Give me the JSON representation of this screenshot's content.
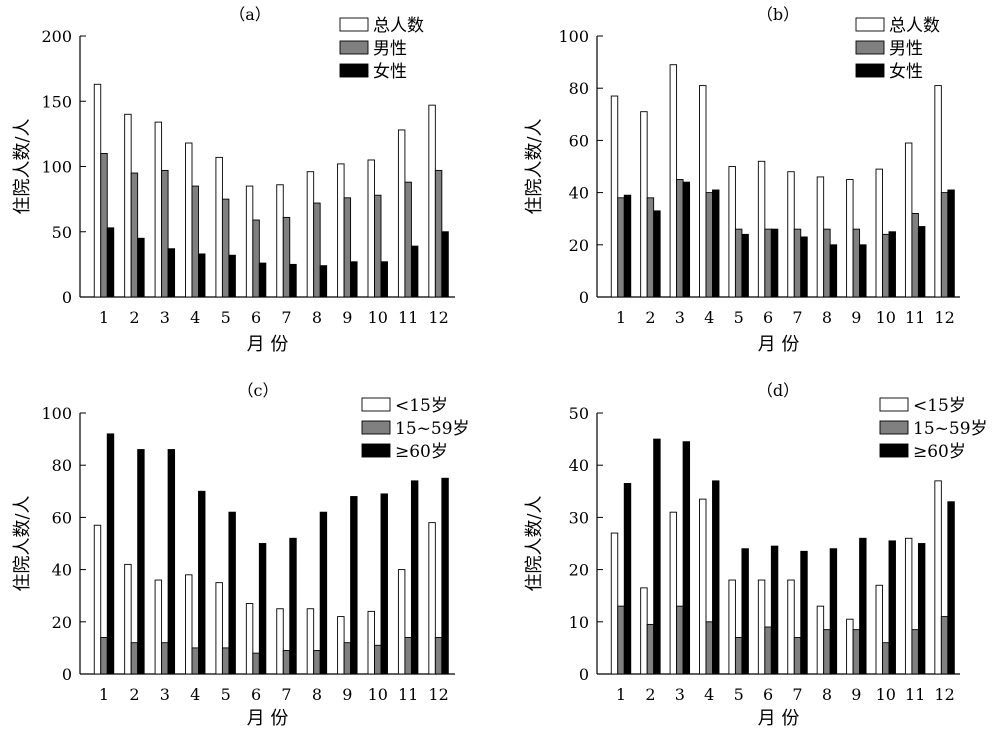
{
  "chart_data": [
    {
      "type": "bar",
      "title": "（a）",
      "xlabel": "月 份",
      "ylabel": "住院人数/人",
      "ylim": [
        0,
        200
      ],
      "yticks": [
        0,
        50,
        100,
        150,
        200
      ],
      "categories": [
        "1",
        "2",
        "3",
        "4",
        "5",
        "6",
        "7",
        "8",
        "9",
        "10",
        "11",
        "12"
      ],
      "legend_position": "top-right",
      "series": [
        {
          "name": "总人数",
          "color": "#ffffff",
          "values": [
            163,
            140,
            134,
            118,
            107,
            85,
            86,
            96,
            102,
            105,
            128,
            147
          ]
        },
        {
          "name": "男性",
          "color": "#808080",
          "values": [
            110,
            95,
            97,
            85,
            75,
            59,
            61,
            72,
            76,
            78,
            88,
            97
          ]
        },
        {
          "name": "女性",
          "color": "#000000",
          "values": [
            53,
            45,
            37,
            33,
            32,
            26,
            25,
            24,
            27,
            27,
            39,
            50
          ]
        }
      ]
    },
    {
      "type": "bar",
      "title": "（b）",
      "xlabel": "月 份",
      "ylabel": "住院人数/人",
      "ylim": [
        0,
        100
      ],
      "yticks": [
        0,
        20,
        40,
        60,
        80,
        100
      ],
      "categories": [
        "1",
        "2",
        "3",
        "4",
        "5",
        "6",
        "7",
        "8",
        "9",
        "10",
        "11",
        "12"
      ],
      "legend_position": "top-right",
      "series": [
        {
          "name": "总人数",
          "color": "#ffffff",
          "values": [
            77,
            71,
            89,
            81,
            50,
            52,
            48,
            46,
            45,
            49,
            59,
            81
          ]
        },
        {
          "name": "男性",
          "color": "#808080",
          "values": [
            38,
            38,
            45,
            40,
            26,
            26,
            26,
            26,
            26,
            24,
            32,
            40
          ]
        },
        {
          "name": "女性",
          "color": "#000000",
          "values": [
            39,
            33,
            44,
            41,
            24,
            26,
            23,
            20,
            20,
            25,
            27,
            41
          ]
        }
      ]
    },
    {
      "type": "bar",
      "title": "（c）",
      "xlabel": "月 份",
      "ylabel": "住院人数/人",
      "ylim": [
        0,
        100
      ],
      "yticks": [
        0,
        20,
        40,
        60,
        80,
        100
      ],
      "categories": [
        "1",
        "2",
        "3",
        "4",
        "5",
        "6",
        "7",
        "8",
        "9",
        "10",
        "11",
        "12"
      ],
      "legend_position": "top-right",
      "series": [
        {
          "name": "<15岁",
          "color": "#ffffff",
          "values": [
            57,
            42,
            36,
            38,
            35,
            27,
            25,
            25,
            22,
            24,
            40,
            58
          ]
        },
        {
          "name": "15~59岁",
          "color": "#808080",
          "values": [
            14,
            12,
            12,
            10,
            10,
            8,
            9,
            9,
            12,
            11,
            14,
            14
          ]
        },
        {
          "name": "≥60岁",
          "color": "#000000",
          "values": [
            92,
            86,
            86,
            70,
            62,
            50,
            52,
            62,
            68,
            69,
            74,
            75
          ]
        }
      ]
    },
    {
      "type": "bar",
      "title": "（d）",
      "xlabel": "月 份",
      "ylabel": "住院人数/人",
      "ylim": [
        0,
        50
      ],
      "yticks": [
        0,
        10,
        20,
        30,
        40,
        50
      ],
      "categories": [
        "1",
        "2",
        "3",
        "4",
        "5",
        "6",
        "7",
        "8",
        "9",
        "10",
        "11",
        "12"
      ],
      "legend_position": "top-right",
      "series": [
        {
          "name": "<15岁",
          "color": "#ffffff",
          "values": [
            27,
            16.5,
            31,
            33.5,
            18,
            18,
            18,
            13,
            10.5,
            17,
            26,
            37
          ]
        },
        {
          "name": "15~59岁",
          "color": "#808080",
          "values": [
            13,
            9.5,
            13,
            10,
            7,
            9,
            7,
            8.5,
            8.5,
            6,
            8.5,
            11
          ]
        },
        {
          "name": "≥60岁",
          "color": "#000000",
          "values": [
            36.5,
            45,
            44.5,
            37,
            24,
            24.5,
            23.5,
            24,
            26,
            25.5,
            25,
            33
          ]
        }
      ]
    }
  ]
}
